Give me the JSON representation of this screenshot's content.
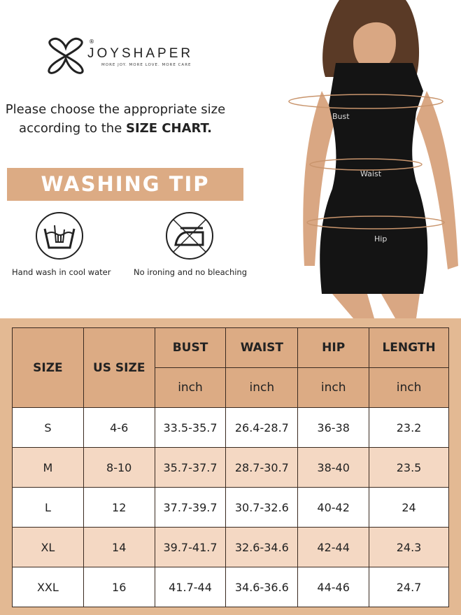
{
  "brand": {
    "name": "JOYSHAPER",
    "tagline": "MORE JOY. MORE LOVE. MORE CARE",
    "registered": "®"
  },
  "intro": {
    "text": "Please choose the appropriate size according to the ",
    "emphasis": "SIZE CHART."
  },
  "washing": {
    "title": "WASHING TIP",
    "items": [
      {
        "icon": "hand-wash-icon",
        "label": "Hand wash in cool water"
      },
      {
        "icon": "no-iron-icon",
        "label": "No ironing and no bleaching"
      }
    ]
  },
  "model": {
    "labels": {
      "bust": "Bust",
      "waist": "Waist",
      "hip": "Hip"
    }
  },
  "colors": {
    "accent": "#dcab84",
    "row_alt": "#f4d8c3",
    "frame": "#e3b993"
  },
  "size_chart": {
    "headers": [
      "SIZE",
      "US SIZE",
      "BUST",
      "WAIST",
      "HIP",
      "LENGTH"
    ],
    "units": [
      "inch",
      "inch",
      "inch",
      "inch"
    ],
    "rows": [
      [
        "S",
        "4-6",
        "33.5-35.7",
        "26.4-28.7",
        "36-38",
        "23.2"
      ],
      [
        "M",
        "8-10",
        "35.7-37.7",
        "28.7-30.7",
        "38-40",
        "23.5"
      ],
      [
        "L",
        "12",
        "37.7-39.7",
        "30.7-32.6",
        "40-42",
        "24"
      ],
      [
        "XL",
        "14",
        "39.7-41.7",
        "32.6-34.6",
        "42-44",
        "24.3"
      ],
      [
        "XXL",
        "16",
        "41.7-44",
        "34.6-36.6",
        "44-46",
        "24.7"
      ]
    ]
  }
}
